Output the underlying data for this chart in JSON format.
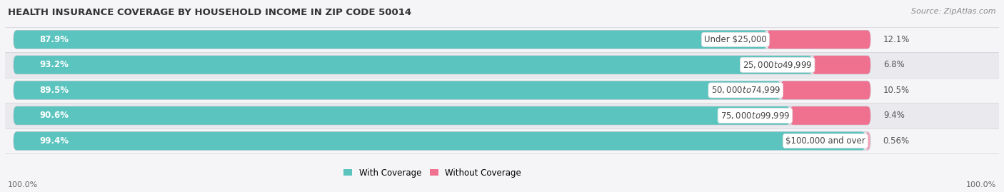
{
  "title": "HEALTH INSURANCE COVERAGE BY HOUSEHOLD INCOME IN ZIP CODE 50014",
  "source": "Source: ZipAtlas.com",
  "categories": [
    "Under $25,000",
    "$25,000 to $49,999",
    "$50,000 to $74,999",
    "$75,000 to $99,999",
    "$100,000 and over"
  ],
  "with_coverage": [
    87.9,
    93.2,
    89.5,
    90.6,
    99.4
  ],
  "without_coverage": [
    12.1,
    6.8,
    10.5,
    9.4,
    0.56
  ],
  "coverage_color": "#5BC4BF",
  "no_coverage_colors": [
    "#F07090",
    "#F07090",
    "#F07090",
    "#F07090",
    "#F5A0B8"
  ],
  "bar_bg_color": "#E8E8EC",
  "row_bg_colors": [
    "#F5F5F8",
    "#EAEAEE"
  ],
  "coverage_label": "With Coverage",
  "no_coverage_label": "Without Coverage",
  "left_label": "100.0%",
  "right_label": "100.0%",
  "title_fontsize": 9.5,
  "source_fontsize": 8,
  "bar_label_fontsize": 8.5,
  "category_fontsize": 8.5,
  "value_label_fontsize": 8.5
}
